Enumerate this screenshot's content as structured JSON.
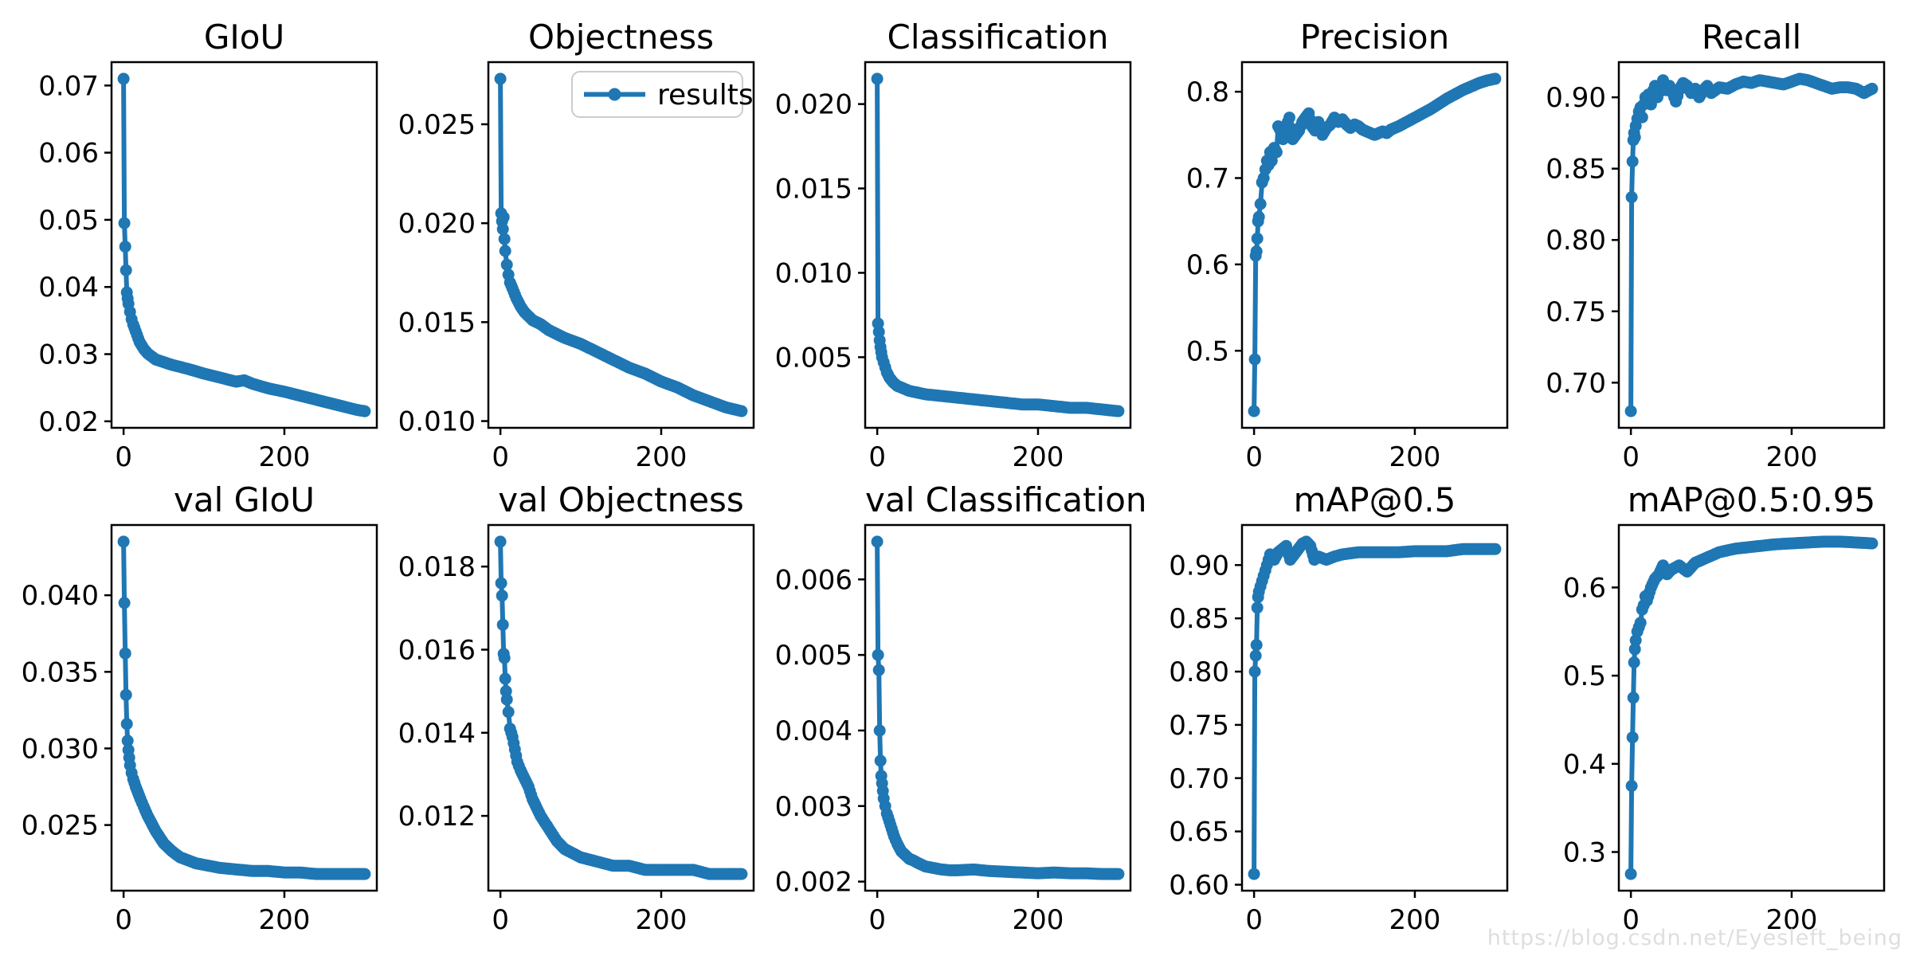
{
  "figure": {
    "background": "#ffffff",
    "watermark": "https://blog.csdn.net/Eyesleft_being"
  },
  "colors": {
    "series": "#1f77b4",
    "axis": "#000000",
    "tick_text": "#000000",
    "legend_border": "#cccccc",
    "watermark_text": "#dedede"
  },
  "legend": {
    "label": "results",
    "position": "upper right",
    "subplot": "Objectness"
  },
  "chart_data": [
    {
      "type": "line",
      "title": "GIoU",
      "series_name": "results",
      "legend": false,
      "grid": false,
      "xlim": [
        -15,
        315
      ],
      "ylim": [
        0.01903,
        0.07348
      ],
      "xticks": {
        "values": [
          0,
          200
        ],
        "labels": [
          "0",
          "200"
        ]
      },
      "yticks": {
        "values": [
          0.02,
          0.03,
          0.04,
          0.05,
          0.06,
          0.07
        ],
        "labels": [
          "0.02",
          "0.03",
          "0.04",
          "0.05",
          "0.06",
          "0.07"
        ]
      },
      "x": [
        0,
        1,
        2,
        3,
        4,
        5,
        6,
        8,
        10,
        12,
        15,
        20,
        25,
        30,
        40,
        50,
        60,
        80,
        100,
        120,
        140,
        150,
        160,
        180,
        200,
        220,
        240,
        260,
        280,
        290,
        300
      ],
      "y": [
        0.071,
        0.0495,
        0.046,
        0.0425,
        0.0392,
        0.0383,
        0.0375,
        0.0363,
        0.0352,
        0.0344,
        0.0334,
        0.0318,
        0.0308,
        0.0301,
        0.0292,
        0.0288,
        0.0284,
        0.0278,
        0.0271,
        0.0265,
        0.0259,
        0.0261,
        0.0256,
        0.0249,
        0.0244,
        0.0238,
        0.0232,
        0.0226,
        0.022,
        0.0217,
        0.0215
      ]
    },
    {
      "type": "line",
      "title": "Objectness",
      "series_name": "results",
      "legend": true,
      "grid": false,
      "xlim": [
        -15,
        315
      ],
      "ylim": [
        0.00966,
        0.02814
      ],
      "xticks": {
        "values": [
          0,
          200
        ],
        "labels": [
          "0",
          "200"
        ]
      },
      "yticks": {
        "values": [
          0.01,
          0.015,
          0.02,
          0.025
        ],
        "labels": [
          "0.010",
          "0.015",
          "0.020",
          "0.025"
        ]
      },
      "x": [
        0,
        1,
        2,
        3,
        4,
        5,
        6,
        8,
        10,
        12,
        15,
        20,
        25,
        30,
        40,
        50,
        60,
        80,
        100,
        120,
        140,
        160,
        180,
        200,
        220,
        240,
        260,
        280,
        300
      ],
      "y": [
        0.0273,
        0.0205,
        0.0201,
        0.0197,
        0.0203,
        0.0192,
        0.0186,
        0.0179,
        0.0174,
        0.017,
        0.0167,
        0.0162,
        0.0158,
        0.0155,
        0.0151,
        0.0149,
        0.0146,
        0.0142,
        0.0139,
        0.0135,
        0.0131,
        0.0127,
        0.0124,
        0.012,
        0.0117,
        0.0113,
        0.011,
        0.0107,
        0.0105
      ]
    },
    {
      "type": "line",
      "title": "Classification",
      "series_name": "results",
      "legend": false,
      "grid": false,
      "xlim": [
        -15,
        315
      ],
      "ylim": [
        0.000815,
        0.022485
      ],
      "xticks": {
        "values": [
          0,
          200
        ],
        "labels": [
          "0",
          "200"
        ]
      },
      "yticks": {
        "values": [
          0.005,
          0.01,
          0.015,
          0.02
        ],
        "labels": [
          "0.005",
          "0.010",
          "0.015",
          "0.020"
        ]
      },
      "x": [
        0,
        1,
        2,
        3,
        4,
        5,
        6,
        8,
        10,
        12,
        15,
        20,
        25,
        30,
        40,
        50,
        60,
        80,
        100,
        120,
        140,
        160,
        180,
        200,
        220,
        240,
        260,
        280,
        300
      ],
      "y": [
        0.0215,
        0.007,
        0.0065,
        0.006,
        0.0056,
        0.0053,
        0.005,
        0.0047,
        0.0044,
        0.0041,
        0.0038,
        0.0035,
        0.0033,
        0.0032,
        0.003,
        0.0029,
        0.0028,
        0.0027,
        0.0026,
        0.0025,
        0.0024,
        0.0023,
        0.0022,
        0.0022,
        0.0021,
        0.002,
        0.002,
        0.0019,
        0.0018
      ]
    },
    {
      "type": "line",
      "title": "Precision",
      "series_name": "results",
      "legend": false,
      "grid": false,
      "xlim": [
        -15,
        315
      ],
      "ylim": [
        0.41075,
        0.83425
      ],
      "xticks": {
        "values": [
          0,
          200
        ],
        "labels": [
          "0",
          "200"
        ]
      },
      "yticks": {
        "values": [
          0.5,
          0.6,
          0.7,
          0.8
        ],
        "labels": [
          "0.5",
          "0.6",
          "0.7",
          "0.8"
        ]
      },
      "x": [
        0,
        1,
        2,
        3,
        4,
        5,
        6,
        8,
        10,
        12,
        14,
        16,
        18,
        20,
        22,
        25,
        28,
        30,
        33,
        36,
        40,
        44,
        48,
        52,
        56,
        60,
        64,
        68,
        72,
        76,
        80,
        85,
        90,
        95,
        100,
        105,
        110,
        115,
        120,
        125,
        130,
        135,
        140,
        145,
        150,
        155,
        160,
        165,
        170,
        175,
        180,
        190,
        200,
        210,
        220,
        230,
        240,
        250,
        260,
        270,
        280,
        290,
        300
      ],
      "y": [
        0.43,
        0.49,
        0.61,
        0.615,
        0.63,
        0.65,
        0.655,
        0.67,
        0.695,
        0.7,
        0.71,
        0.72,
        0.715,
        0.73,
        0.72,
        0.735,
        0.73,
        0.76,
        0.755,
        0.745,
        0.76,
        0.77,
        0.745,
        0.75,
        0.755,
        0.765,
        0.77,
        0.775,
        0.76,
        0.755,
        0.765,
        0.75,
        0.758,
        0.762,
        0.77,
        0.765,
        0.768,
        0.762,
        0.758,
        0.762,
        0.76,
        0.756,
        0.754,
        0.752,
        0.75,
        0.752,
        0.754,
        0.752,
        0.756,
        0.758,
        0.76,
        0.765,
        0.77,
        0.775,
        0.78,
        0.786,
        0.792,
        0.797,
        0.802,
        0.806,
        0.81,
        0.813,
        0.815
      ]
    },
    {
      "type": "line",
      "title": "Recall",
      "series_name": "results",
      "legend": false,
      "grid": false,
      "xlim": [
        -15,
        315
      ],
      "ylim": [
        0.66835,
        0.92465
      ],
      "xticks": {
        "values": [
          0,
          200
        ],
        "labels": [
          "0",
          "200"
        ]
      },
      "yticks": {
        "values": [
          0.7,
          0.75,
          0.8,
          0.85,
          0.9
        ],
        "labels": [
          "0.70",
          "0.75",
          "0.80",
          "0.85",
          "0.90"
        ]
      },
      "x": [
        0,
        1,
        2,
        3,
        4,
        5,
        6,
        8,
        10,
        12,
        14,
        16,
        18,
        20,
        22,
        25,
        28,
        30,
        33,
        36,
        40,
        44,
        48,
        52,
        56,
        60,
        65,
        70,
        75,
        80,
        85,
        90,
        95,
        100,
        110,
        120,
        130,
        140,
        150,
        160,
        170,
        180,
        190,
        200,
        210,
        220,
        230,
        240,
        250,
        260,
        270,
        280,
        290,
        300
      ],
      "y": [
        0.68,
        0.83,
        0.855,
        0.87,
        0.875,
        0.872,
        0.88,
        0.885,
        0.89,
        0.893,
        0.886,
        0.895,
        0.9,
        0.898,
        0.902,
        0.895,
        0.905,
        0.908,
        0.9,
        0.906,
        0.912,
        0.905,
        0.908,
        0.903,
        0.897,
        0.905,
        0.91,
        0.908,
        0.903,
        0.906,
        0.9,
        0.905,
        0.908,
        0.903,
        0.907,
        0.906,
        0.909,
        0.911,
        0.91,
        0.912,
        0.911,
        0.91,
        0.909,
        0.911,
        0.913,
        0.912,
        0.91,
        0.908,
        0.906,
        0.907,
        0.907,
        0.906,
        0.903,
        0.906
      ]
    },
    {
      "type": "line",
      "title": "val GIoU",
      "series_name": "results",
      "legend": false,
      "grid": false,
      "xlim": [
        -15,
        315
      ],
      "ylim": [
        0.020715,
        0.044585
      ],
      "xticks": {
        "values": [
          0,
          200
        ],
        "labels": [
          "0",
          "200"
        ]
      },
      "yticks": {
        "values": [
          0.025,
          0.03,
          0.035,
          0.04
        ],
        "labels": [
          "0.025",
          "0.030",
          "0.035",
          "0.040"
        ]
      },
      "x": [
        0,
        1,
        2,
        3,
        4,
        5,
        6,
        7,
        8,
        10,
        12,
        15,
        18,
        21,
        25,
        30,
        35,
        40,
        45,
        50,
        60,
        70,
        80,
        90,
        100,
        120,
        140,
        160,
        180,
        200,
        220,
        240,
        260,
        280,
        300
      ],
      "y": [
        0.0435,
        0.0395,
        0.0362,
        0.0335,
        0.0316,
        0.0305,
        0.0299,
        0.0294,
        0.0289,
        0.0284,
        0.028,
        0.0275,
        0.0271,
        0.0267,
        0.0262,
        0.0256,
        0.0251,
        0.0246,
        0.0242,
        0.0238,
        0.0233,
        0.0229,
        0.0227,
        0.0225,
        0.0224,
        0.0222,
        0.0221,
        0.022,
        0.022,
        0.0219,
        0.0219,
        0.0218,
        0.0218,
        0.0218,
        0.0218
      ]
    },
    {
      "type": "line",
      "title": "val Objectness",
      "series_name": "results",
      "legend": false,
      "grid": false,
      "xlim": [
        -15,
        315
      ],
      "ylim": [
        0.0102,
        0.019
      ],
      "xticks": {
        "values": [
          0,
          200
        ],
        "labels": [
          "0",
          "200"
        ]
      },
      "yticks": {
        "values": [
          0.012,
          0.014,
          0.016,
          0.018
        ],
        "labels": [
          "0.012",
          "0.014",
          "0.016",
          "0.018"
        ]
      },
      "x": [
        0,
        1,
        2,
        3,
        4,
        5,
        6,
        7,
        8,
        10,
        12,
        15,
        18,
        21,
        25,
        30,
        35,
        40,
        45,
        50,
        60,
        70,
        80,
        90,
        100,
        120,
        140,
        160,
        180,
        200,
        220,
        240,
        260,
        280,
        300
      ],
      "y": [
        0.0186,
        0.0176,
        0.0173,
        0.0166,
        0.0159,
        0.0158,
        0.0153,
        0.015,
        0.0148,
        0.0145,
        0.0141,
        0.0139,
        0.0136,
        0.0133,
        0.0131,
        0.0129,
        0.0127,
        0.0124,
        0.0122,
        0.012,
        0.0117,
        0.0114,
        0.0112,
        0.0111,
        0.011,
        0.0109,
        0.0108,
        0.0108,
        0.0107,
        0.0107,
        0.0107,
        0.0107,
        0.0106,
        0.0106,
        0.0106
      ]
    },
    {
      "type": "line",
      "title": "val Classification",
      "series_name": "results",
      "legend": false,
      "grid": false,
      "xlim": [
        -15,
        315
      ],
      "ylim": [
        0.00188,
        0.00672
      ],
      "xticks": {
        "values": [
          0,
          200
        ],
        "labels": [
          "0",
          "200"
        ]
      },
      "yticks": {
        "values": [
          0.002,
          0.003,
          0.004,
          0.005,
          0.006
        ],
        "labels": [
          "0.002",
          "0.003",
          "0.004",
          "0.005",
          "0.006"
        ]
      },
      "x": [
        0,
        1,
        2,
        3,
        4,
        5,
        6,
        7,
        8,
        10,
        12,
        15,
        18,
        21,
        25,
        30,
        35,
        40,
        45,
        50,
        60,
        70,
        80,
        90,
        100,
        120,
        140,
        160,
        180,
        200,
        220,
        240,
        260,
        280,
        300
      ],
      "y": [
        0.0065,
        0.005,
        0.0048,
        0.004,
        0.0036,
        0.0034,
        0.0033,
        0.0032,
        0.0031,
        0.003,
        0.0029,
        0.0028,
        0.0027,
        0.0026,
        0.0025,
        0.0024,
        0.00235,
        0.0023,
        0.00228,
        0.00225,
        0.0022,
        0.00218,
        0.00216,
        0.00215,
        0.00215,
        0.00216,
        0.00214,
        0.00213,
        0.00212,
        0.00211,
        0.00212,
        0.00211,
        0.00211,
        0.0021,
        0.0021
      ]
    },
    {
      "type": "line",
      "title": "mAP@0.5",
      "series_name": "results",
      "legend": false,
      "grid": false,
      "xlim": [
        -15,
        315
      ],
      "ylim": [
        0.5944,
        0.9376
      ],
      "xticks": {
        "values": [
          0,
          200
        ],
        "labels": [
          "0",
          "200"
        ]
      },
      "yticks": {
        "values": [
          0.6,
          0.65,
          0.7,
          0.75,
          0.8,
          0.85,
          0.9
        ],
        "labels": [
          "0.60",
          "0.65",
          "0.70",
          "0.75",
          "0.80",
          "0.85",
          "0.90"
        ]
      },
      "x": [
        0,
        1,
        2,
        3,
        4,
        5,
        6,
        8,
        10,
        12,
        14,
        16,
        18,
        20,
        25,
        30,
        35,
        40,
        45,
        50,
        55,
        60,
        65,
        70,
        75,
        80,
        90,
        100,
        110,
        120,
        130,
        140,
        150,
        160,
        180,
        200,
        220,
        240,
        260,
        280,
        300
      ],
      "y": [
        0.61,
        0.8,
        0.815,
        0.825,
        0.86,
        0.87,
        0.875,
        0.88,
        0.885,
        0.89,
        0.895,
        0.9,
        0.905,
        0.91,
        0.905,
        0.912,
        0.915,
        0.918,
        0.905,
        0.91,
        0.915,
        0.92,
        0.922,
        0.918,
        0.905,
        0.908,
        0.905,
        0.908,
        0.91,
        0.911,
        0.912,
        0.912,
        0.912,
        0.912,
        0.912,
        0.913,
        0.913,
        0.913,
        0.915,
        0.915,
        0.915
      ]
    },
    {
      "type": "line",
      "title": "mAP@0.5:0.95",
      "series_name": "results",
      "legend": false,
      "grid": false,
      "xlim": [
        -15,
        315
      ],
      "ylim": [
        0.25615,
        0.67085
      ],
      "xticks": {
        "values": [
          0,
          200
        ],
        "labels": [
          "0",
          "200"
        ]
      },
      "yticks": {
        "values": [
          0.3,
          0.4,
          0.5,
          0.6
        ],
        "labels": [
          "0.3",
          "0.4",
          "0.5",
          "0.6"
        ]
      },
      "x": [
        0,
        1,
        2,
        3,
        4,
        5,
        6,
        8,
        10,
        12,
        14,
        16,
        18,
        20,
        25,
        30,
        35,
        40,
        45,
        50,
        60,
        70,
        80,
        90,
        100,
        110,
        120,
        130,
        140,
        150,
        160,
        180,
        200,
        220,
        240,
        260,
        280,
        300
      ],
      "y": [
        0.275,
        0.375,
        0.43,
        0.475,
        0.515,
        0.53,
        0.54,
        0.55,
        0.555,
        0.56,
        0.575,
        0.58,
        0.59,
        0.585,
        0.6,
        0.61,
        0.615,
        0.625,
        0.615,
        0.62,
        0.625,
        0.618,
        0.628,
        0.632,
        0.636,
        0.64,
        0.642,
        0.644,
        0.645,
        0.646,
        0.647,
        0.649,
        0.65,
        0.651,
        0.652,
        0.652,
        0.651,
        0.65
      ]
    }
  ]
}
